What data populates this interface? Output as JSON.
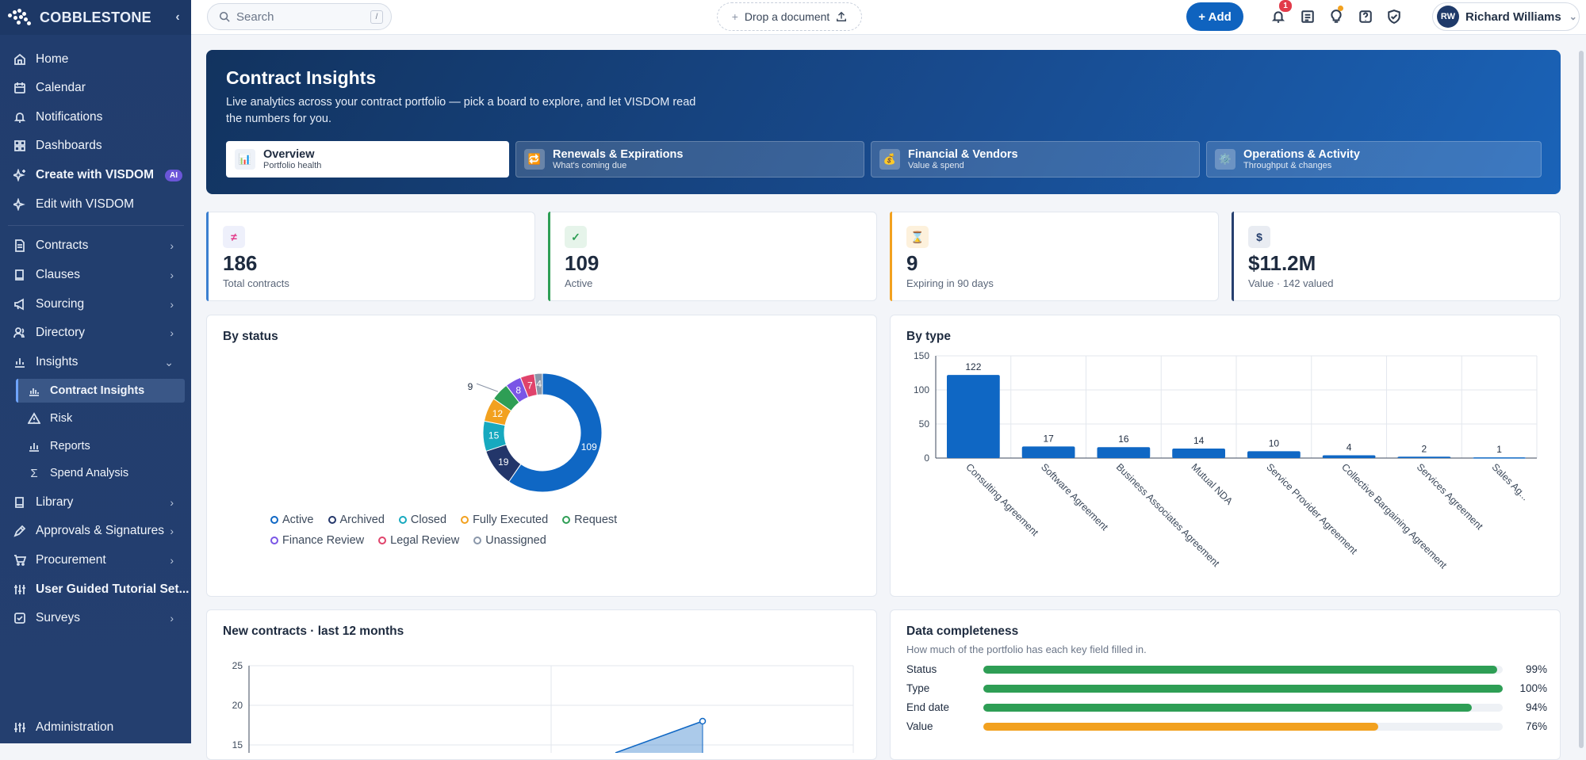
{
  "brand": {
    "name": "COBBLESTONE"
  },
  "sidebar": {
    "items": [
      {
        "label": "Home",
        "icon": "home-icon"
      },
      {
        "label": "Calendar",
        "icon": "calendar-icon"
      },
      {
        "label": "Notifications",
        "icon": "bell-icon"
      },
      {
        "label": "Dashboards",
        "icon": "grid-icon"
      },
      {
        "label": "Create with VISDOM",
        "icon": "sparkle-icon",
        "badge": "AI"
      },
      {
        "label": "Edit with VISDOM",
        "icon": "sparkle-pen-icon"
      },
      {
        "label": "Contracts",
        "icon": "document-icon"
      },
      {
        "label": "Clauses",
        "icon": "book-icon"
      },
      {
        "label": "Sourcing",
        "icon": "megaphone-icon"
      },
      {
        "label": "Directory",
        "icon": "users-icon"
      },
      {
        "label": "Insights",
        "icon": "chart-icon"
      },
      {
        "label": "Contract Insights",
        "icon": "bar-chart-icon"
      },
      {
        "label": "Risk",
        "icon": "warning-icon"
      },
      {
        "label": "Reports",
        "icon": "report-icon"
      },
      {
        "label": "Spend Analysis",
        "icon": "sigma-icon"
      },
      {
        "label": "Library",
        "icon": "library-icon"
      },
      {
        "label": "Approvals & Signatures",
        "icon": "pen-icon"
      },
      {
        "label": "Procurement",
        "icon": "cart-icon"
      },
      {
        "label": "User Guided Tutorial Set...",
        "icon": "sliders-icon"
      },
      {
        "label": "Surveys",
        "icon": "checkbox-icon"
      },
      {
        "label": "Administration",
        "icon": "admin-sliders-icon"
      }
    ]
  },
  "topbar": {
    "search_placeholder": "Search",
    "search_shortcut": "/",
    "drop_label": "Drop a document",
    "add_label": "+ Add",
    "notification_count": "1",
    "user_initials": "RW",
    "user_name": "Richard Williams"
  },
  "hero": {
    "title": "Contract Insights",
    "subtitle": "Live analytics across your contract portfolio — pick a board to explore, and let VISDOM read the numbers for you.",
    "tabs": [
      {
        "title": "Overview",
        "sub": "Portfolio health",
        "icon": "📊"
      },
      {
        "title": "Renewals & Expirations",
        "sub": "What's coming due",
        "icon": "🔁"
      },
      {
        "title": "Financial & Vendors",
        "sub": "Value & spend",
        "icon": "💰"
      },
      {
        "title": "Operations & Activity",
        "sub": "Throughput & changes",
        "icon": "⚙️"
      }
    ]
  },
  "kpis": [
    {
      "value": "186",
      "label": "Total contracts",
      "icon": "≠",
      "color": "#3b7fd0",
      "icon_bg": "#eef0fb",
      "icon_color": "#e23b8a"
    },
    {
      "value": "109",
      "label": "Active",
      "icon": "✓",
      "color": "#2e9e55",
      "icon_bg": "#e6f4ea",
      "icon_color": "#2e9e55"
    },
    {
      "value": "9",
      "label": "Expiring in 90 days",
      "icon": "⌛",
      "color": "#f2a11f",
      "icon_bg": "#fdf1dc",
      "icon_color": "#c9822a"
    },
    {
      "value": "$11.2M",
      "label": "Value · 142 valued",
      "icon": "$",
      "color": "#27406f",
      "icon_bg": "#e9ecf2",
      "icon_color": "#27406f"
    }
  ],
  "charts": {
    "status_title": "By status",
    "type_title": "By type",
    "new_title": "New contracts · last 12 months",
    "completeness_title": "Data completeness",
    "completeness_desc": "How much of the portfolio has each key field filled in."
  },
  "chart_data": [
    {
      "type": "pie",
      "title": "By status",
      "categories": [
        "Active",
        "Archived",
        "Closed",
        "Fully Executed",
        "Request",
        "Finance Review",
        "Legal Review",
        "Unassigned"
      ],
      "values": [
        109,
        19,
        15,
        12,
        9,
        8,
        7,
        4
      ],
      "colors": [
        "#0f67c4",
        "#23366a",
        "#17a9bf",
        "#f2a11f",
        "#2e9e55",
        "#7a55e6",
        "#e0436b",
        "#8a97aa"
      ],
      "legend": "bottom"
    },
    {
      "type": "bar",
      "title": "By type",
      "categories": [
        "Consulting Agreement",
        "Software Agreement",
        "Business Associates Agreement",
        "Mutual NDA",
        "Service Provider Agreement",
        "Collective Bargaining Agreement",
        "Services Agreement",
        "Sales Ag..."
      ],
      "values": [
        122,
        17,
        16,
        14,
        10,
        4,
        2,
        1
      ],
      "ylim": [
        0,
        150
      ],
      "yticks": [
        0,
        50,
        100,
        150
      ],
      "color": "#0f67c4"
    },
    {
      "type": "area",
      "title": "New contracts · last 12 months",
      "yticks": [
        15,
        20,
        25
      ],
      "visible_point": 18,
      "color": "#0f67c4"
    }
  ],
  "completeness": [
    {
      "name": "Status",
      "pct": 99,
      "label": "99%",
      "color": "#2e9e55"
    },
    {
      "name": "Type",
      "pct": 100,
      "label": "100%",
      "color": "#2e9e55"
    },
    {
      "name": "End date",
      "pct": 94,
      "label": "94%",
      "color": "#2e9e55"
    },
    {
      "name": "Value",
      "pct": 76,
      "label": "76%",
      "color": "#f2a11f"
    }
  ]
}
